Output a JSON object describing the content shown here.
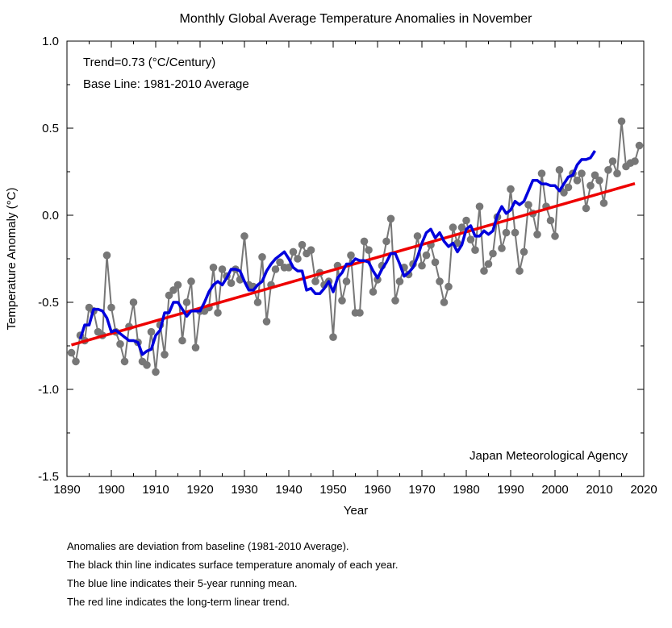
{
  "chart_data": {
    "type": "line",
    "title": "Monthly Global Average Temperature Anomalies in November",
    "xlabel": "Year",
    "ylabel": "Temperature Anomaly (°C)",
    "xlim": [
      1890,
      2020
    ],
    "ylim": [
      -1.5,
      1.0
    ],
    "xticks": [
      1890,
      1900,
      1910,
      1920,
      1930,
      1940,
      1950,
      1960,
      1970,
      1980,
      1990,
      2000,
      2010,
      2020
    ],
    "yticks": [
      -1.5,
      -1.0,
      -0.5,
      0.0,
      0.5,
      1.0
    ],
    "ytick_labels": [
      "-1.5",
      "-1.0",
      "-0.5",
      "0.0",
      "0.5",
      "1.0"
    ],
    "grid": false,
    "annotations": {
      "trend": "Trend=0.73 (°C/Century)",
      "baseline": "Base Line: 1981-2010 Average",
      "source": "Japan Meteorological Agency"
    },
    "series": [
      {
        "kind": "annual",
        "color": "#777777",
        "x_start": 1891,
        "values": [
          -0.79,
          -0.84,
          -0.69,
          -0.72,
          -0.53,
          -0.55,
          -0.67,
          -0.69,
          -0.23,
          -0.53,
          -0.67,
          -0.74,
          -0.84,
          -0.64,
          -0.5,
          -0.73,
          -0.84,
          -0.86,
          -0.67,
          -0.9,
          -0.63,
          -0.8,
          -0.46,
          -0.43,
          -0.4,
          -0.72,
          -0.5,
          -0.38,
          -0.76,
          -0.55,
          -0.55,
          -0.53,
          -0.3,
          -0.56,
          -0.31,
          -0.35,
          -0.39,
          -0.31,
          -0.37,
          -0.12,
          -0.4,
          -0.41,
          -0.5,
          -0.24,
          -0.61,
          -0.4,
          -0.31,
          -0.27,
          -0.3,
          -0.3,
          -0.21,
          -0.25,
          -0.17,
          -0.22,
          -0.2,
          -0.38,
          -0.33,
          -0.4,
          -0.38,
          -0.7,
          -0.29,
          -0.49,
          -0.38,
          -0.23,
          -0.56,
          -0.56,
          -0.15,
          -0.2,
          -0.44,
          -0.37,
          -0.29,
          -0.15,
          -0.02,
          -0.49,
          -0.38,
          -0.3,
          -0.34,
          -0.28,
          -0.12,
          -0.29,
          -0.23,
          -0.17,
          -0.27,
          -0.38,
          -0.5,
          -0.41,
          -0.07,
          -0.16,
          -0.07,
          -0.03,
          -0.14,
          -0.2,
          0.05,
          -0.32,
          -0.28,
          -0.22,
          -0.01,
          -0.19,
          -0.1,
          0.15,
          -0.1,
          -0.32,
          -0.21,
          0.06,
          0.01,
          -0.11,
          0.24,
          0.05,
          -0.03,
          -0.12,
          0.26,
          0.13,
          0.16,
          0.24,
          0.2,
          0.24,
          0.04,
          0.17,
          0.23,
          0.2,
          0.07,
          0.26,
          0.31,
          0.24,
          0.54,
          0.28,
          0.3,
          0.31,
          0.4
        ]
      },
      {
        "kind": "running_mean_5yr",
        "color": "#0000dd",
        "x_start": 1893,
        "values": [
          -0.71,
          -0.63,
          -0.63,
          -0.54,
          -0.54,
          -0.55,
          -0.59,
          -0.67,
          -0.66,
          -0.68,
          -0.7,
          -0.72,
          -0.72,
          -0.73,
          -0.8,
          -0.78,
          -0.77,
          -0.69,
          -0.66,
          -0.56,
          -0.56,
          -0.5,
          -0.5,
          -0.54,
          -0.58,
          -0.55,
          -0.55,
          -0.55,
          -0.5,
          -0.44,
          -0.4,
          -0.38,
          -0.4,
          -0.36,
          -0.31,
          -0.31,
          -0.32,
          -0.38,
          -0.43,
          -0.43,
          -0.4,
          -0.38,
          -0.32,
          -0.28,
          -0.25,
          -0.23,
          -0.21,
          -0.25,
          -0.3,
          -0.32,
          -0.32,
          -0.43,
          -0.42,
          -0.45,
          -0.45,
          -0.42,
          -0.38,
          -0.44,
          -0.36,
          -0.33,
          -0.28,
          -0.28,
          -0.25,
          -0.26,
          -0.26,
          -0.27,
          -0.32,
          -0.36,
          -0.31,
          -0.27,
          -0.22,
          -0.22,
          -0.28,
          -0.35,
          -0.33,
          -0.3,
          -0.24,
          -0.16,
          -0.1,
          -0.08,
          -0.13,
          -0.1,
          -0.15,
          -0.18,
          -0.16,
          -0.21,
          -0.17,
          -0.08,
          -0.06,
          -0.12,
          -0.12,
          -0.09,
          -0.11,
          -0.09,
          0.0,
          0.05,
          0.01,
          0.03,
          0.08,
          0.06,
          0.08,
          0.14,
          0.2,
          0.2,
          0.18,
          0.18,
          0.17,
          0.17,
          0.14,
          0.18,
          0.22,
          0.23,
          0.29,
          0.32,
          0.32,
          0.33,
          0.37
        ]
      },
      {
        "kind": "linear_trend",
        "color": "#ee0000",
        "x": [
          1891,
          2018
        ],
        "values": [
          -0.745,
          0.182
        ]
      }
    ]
  },
  "footnotes": [
    "Anomalies are deviation from baseline (1981-2010 Average).",
    "The black thin line indicates surface temperature anomaly of each year.",
    "The blue line indicates their 5-year running mean.",
    "The red line indicates the long-term linear trend."
  ]
}
